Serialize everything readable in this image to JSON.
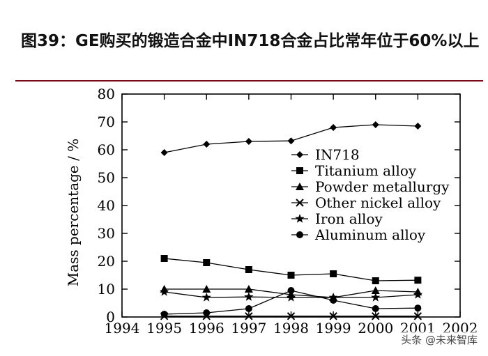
{
  "header": {
    "title": "图39：GE购买的锻造合金中IN718合金占比常年位于60%以上"
  },
  "watermark": "头条 @未来智库",
  "chart_data": {
    "type": "line",
    "xlabel": "",
    "ylabel": "Mass percentage / %",
    "xlim": [
      1994,
      2002
    ],
    "ylim": [
      0,
      80
    ],
    "x_ticks": [
      "1994",
      "1995",
      "1996",
      "1997",
      "1998",
      "1999",
      "2000",
      "2001",
      "2002"
    ],
    "y_ticks": [
      "0",
      "10",
      "20",
      "30",
      "40",
      "50",
      "60",
      "70",
      "80"
    ],
    "legend_position": "center-right",
    "x": [
      1995,
      1996,
      1997,
      1998,
      1999,
      2000,
      2001
    ],
    "series": [
      {
        "name": "IN718",
        "marker": "diamond",
        "values": [
          59,
          62,
          63,
          63.2,
          68,
          69,
          68.5
        ]
      },
      {
        "name": "Titanium alloy",
        "marker": "square",
        "values": [
          21,
          19.5,
          17,
          15,
          15.5,
          13,
          13.2
        ]
      },
      {
        "name": "Powder metallurgy",
        "marker": "triangle",
        "values": [
          10,
          10,
          10,
          8,
          7,
          9.5,
          9
        ]
      },
      {
        "name": "Other nickel alloy",
        "marker": "x",
        "values": [
          0.3,
          0.3,
          0.3,
          0.3,
          0.3,
          0.3,
          0.3
        ]
      },
      {
        "name": "Iron alloy",
        "marker": "star",
        "values": [
          9,
          7,
          7.2,
          7,
          7,
          7,
          8
        ]
      },
      {
        "name": "Aluminum alloy",
        "marker": "circle",
        "values": [
          1,
          1.5,
          3,
          9.5,
          6,
          3,
          3.2
        ]
      }
    ]
  }
}
